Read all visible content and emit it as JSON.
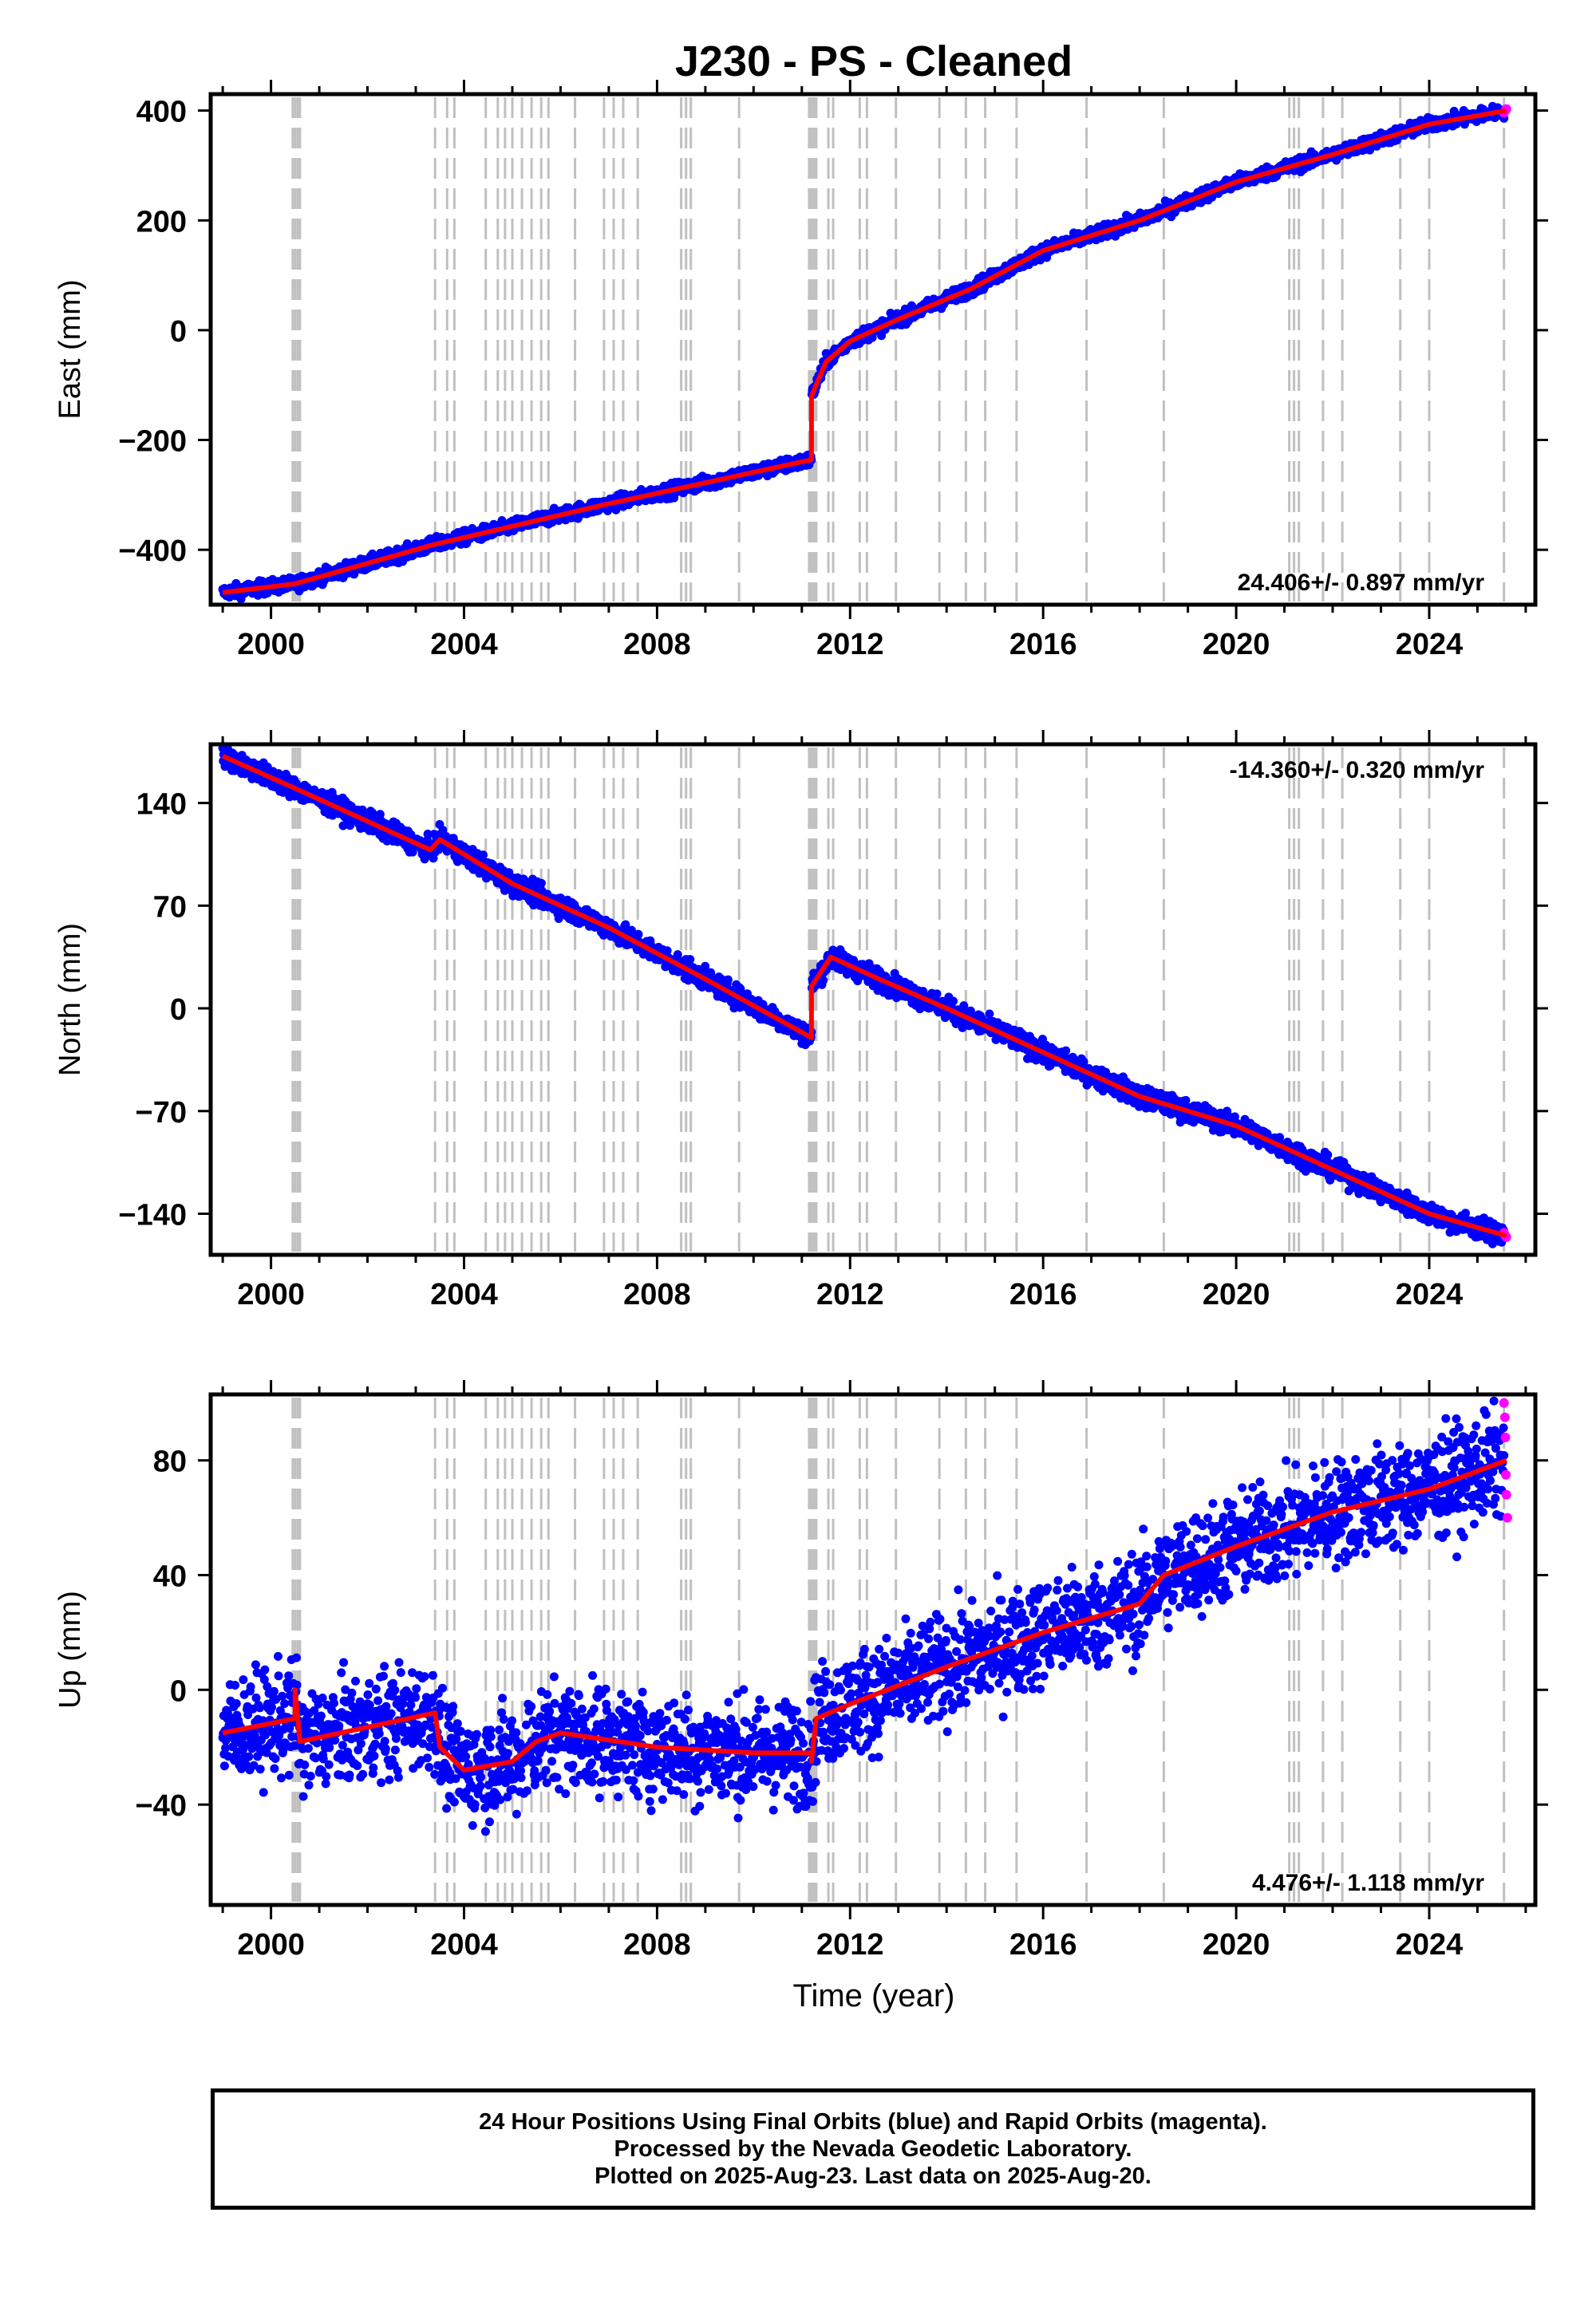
{
  "title": "J230  - PS - Cleaned",
  "xlabel": "Time (year)",
  "xticks": [
    "2000",
    "2004",
    "2008",
    "2012",
    "2016",
    "2020",
    "2024"
  ],
  "footer": {
    "line1": "24 Hour Positions Using Final Orbits (blue) and Rapid Orbits (magenta).",
    "line2": "Processed by the Nevada Geodetic Laboratory.",
    "line3": "Plotted on 2025-Aug-23. Last data on 2025-Aug-20."
  },
  "colors": {
    "final_orbits": "#0000ff",
    "rapid_orbits": "#ff00ff",
    "model": "#ff0000",
    "event_lines": "#c0c0c0"
  },
  "chart_data": [
    {
      "type": "scatter",
      "panel": "east",
      "ylabel": "East (mm)",
      "xlim": [
        1998.75,
        2026.2
      ],
      "ylim": [
        -500,
        430
      ],
      "yticks": [
        "400",
        "200",
        "0",
        "−200",
        "−400"
      ],
      "ytick_values": [
        400,
        200,
        0,
        -200,
        -400
      ],
      "rate_label": "24.406+/- 0.897 mm/yr",
      "rate_position": "bottom-right",
      "model_points": [
        [
          1999.0,
          -478
        ],
        [
          2000.5,
          -462
        ],
        [
          2003.4,
          -390
        ],
        [
          2006.9,
          -318
        ],
        [
          2009.0,
          -278
        ],
        [
          2011.2,
          -236
        ],
        [
          2011.2,
          -120
        ],
        [
          2011.5,
          -58
        ],
        [
          2012.0,
          -20
        ],
        [
          2013.0,
          20
        ],
        [
          2014.5,
          75
        ],
        [
          2016.0,
          145
        ],
        [
          2018.0,
          200
        ],
        [
          2020.0,
          270
        ],
        [
          2022.0,
          320
        ],
        [
          2024.0,
          375
        ],
        [
          2025.6,
          400
        ]
      ],
      "noise_mm": 6,
      "rapid_points": [
        [
          2025.55,
          396
        ],
        [
          2025.58,
          400
        ],
        [
          2025.6,
          403
        ]
      ]
    },
    {
      "type": "scatter",
      "panel": "north",
      "ylabel": "North (mm)",
      "xlim": [
        1998.75,
        2026.2
      ],
      "ylim": [
        -168,
        180
      ],
      "yticks": [
        "140",
        "70",
        "0",
        "−70",
        "−140"
      ],
      "ytick_values": [
        140,
        70,
        0,
        -70,
        -140
      ],
      "rate_label": "-14.360+/- 0.320 mm/yr",
      "rate_position": "top-right",
      "model_points": [
        [
          1999.0,
          172
        ],
        [
          2000.5,
          150
        ],
        [
          2003.3,
          108
        ],
        [
          2003.5,
          115
        ],
        [
          2005.0,
          85
        ],
        [
          2007.0,
          55
        ],
        [
          2009.0,
          20
        ],
        [
          2011.2,
          -20
        ],
        [
          2011.2,
          15
        ],
        [
          2011.6,
          35
        ],
        [
          2012.6,
          20
        ],
        [
          2014.0,
          0
        ],
        [
          2016.0,
          -30
        ],
        [
          2018.0,
          -60
        ],
        [
          2020.0,
          -80
        ],
        [
          2022.0,
          -110
        ],
        [
          2024.0,
          -140
        ],
        [
          2025.6,
          -155
        ]
      ],
      "noise_mm": 3.5,
      "rapid_points": [
        [
          2025.55,
          -153
        ],
        [
          2025.58,
          -155
        ],
        [
          2025.6,
          -156
        ]
      ]
    },
    {
      "type": "scatter",
      "panel": "up",
      "ylabel": "Up (mm)",
      "xlim": [
        1998.75,
        2026.2
      ],
      "ylim": [
        -75,
        103
      ],
      "yticks": [
        "80",
        "40",
        "0",
        "−40"
      ],
      "ytick_values": [
        80,
        40,
        0,
        -40
      ],
      "rate_label": "4.476+/- 1.118 mm/yr",
      "rate_position": "bottom-right",
      "model_points": [
        [
          1999.0,
          -15
        ],
        [
          2000.5,
          -10
        ],
        [
          2000.5,
          0
        ],
        [
          2000.6,
          -18
        ],
        [
          2003.4,
          -8
        ],
        [
          2003.5,
          -20
        ],
        [
          2004.0,
          -28
        ],
        [
          2005.0,
          -25
        ],
        [
          2005.5,
          -18
        ],
        [
          2006.0,
          -15
        ],
        [
          2008.0,
          -20
        ],
        [
          2010.0,
          -22
        ],
        [
          2011.2,
          -22
        ],
        [
          2011.2,
          -25
        ],
        [
          2011.3,
          -10
        ],
        [
          2012.0,
          -5
        ],
        [
          2014.0,
          8
        ],
        [
          2016.0,
          20
        ],
        [
          2018.0,
          30
        ],
        [
          2018.5,
          40
        ],
        [
          2020.0,
          50
        ],
        [
          2022.0,
          62
        ],
        [
          2024.0,
          70
        ],
        [
          2025.6,
          80
        ]
      ],
      "noise_mm": 9,
      "rapid_points": [
        [
          2025.55,
          100
        ],
        [
          2025.57,
          95
        ],
        [
          2025.58,
          88
        ],
        [
          2025.59,
          75
        ],
        [
          2025.6,
          68
        ],
        [
          2025.62,
          60
        ]
      ]
    }
  ],
  "event_lines_years": [
    2000.45,
    2000.5,
    2000.55,
    2000.6,
    2003.4,
    2003.65,
    2003.8,
    2004.45,
    2004.7,
    2004.85,
    2005.0,
    2005.2,
    2005.4,
    2005.6,
    2005.75,
    2006.3,
    2006.9,
    2007.1,
    2007.3,
    2007.6,
    2008.5,
    2008.6,
    2008.7,
    2009.7,
    2011.15,
    2011.2,
    2011.25,
    2011.3,
    2011.55,
    2011.65,
    2012.2,
    2012.35,
    2012.95,
    2013.85,
    2014.4,
    2014.8,
    2015.45,
    2016.9,
    2018.5,
    2021.1,
    2021.2,
    2021.3,
    2021.8,
    2022.2,
    2023.4,
    2024.0,
    2025.55
  ]
}
